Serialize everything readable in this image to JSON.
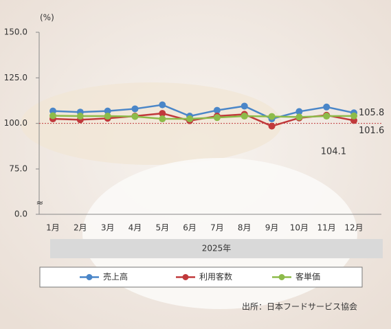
{
  "chart_data": {
    "type": "line",
    "y_unit": "(%)",
    "categories": [
      "1月",
      "2月",
      "3月",
      "4月",
      "5月",
      "6月",
      "7月",
      "8月",
      "9月",
      "10月",
      "11月",
      "12月"
    ],
    "x_group": "2025年",
    "series": [
      {
        "name": "売上高",
        "color": "#4a86c8",
        "values": [
          106.8,
          106.2,
          106.8,
          108.0,
          110.2,
          104.0,
          107.2,
          109.5,
          102.5,
          106.5,
          109.0,
          105.8
        ]
      },
      {
        "name": "利用客数",
        "color": "#c0393b",
        "values": [
          102.5,
          102.0,
          102.8,
          104.0,
          105.5,
          101.5,
          104.0,
          105.0,
          98.5,
          103.0,
          104.5,
          101.6
        ]
      },
      {
        "name": "客単価",
        "color": "#8dbb4a",
        "values": [
          104.2,
          104.0,
          104.0,
          103.8,
          102.5,
          102.5,
          103.2,
          104.0,
          103.8,
          103.5,
          104.0,
          104.1
        ]
      }
    ],
    "ylim": [
      0,
      150
    ],
    "y_break": [
      0,
      75
    ],
    "yticks": [
      {
        "value": 0,
        "label": "0.0"
      },
      {
        "value": 75,
        "label": "75.0"
      },
      {
        "value": 100,
        "label": "100.0"
      },
      {
        "value": 125,
        "label": "125.0"
      },
      {
        "value": 150,
        "label": "150.0"
      }
    ],
    "reference_line": 100,
    "source": "出所：日本フードサービス協会"
  }
}
